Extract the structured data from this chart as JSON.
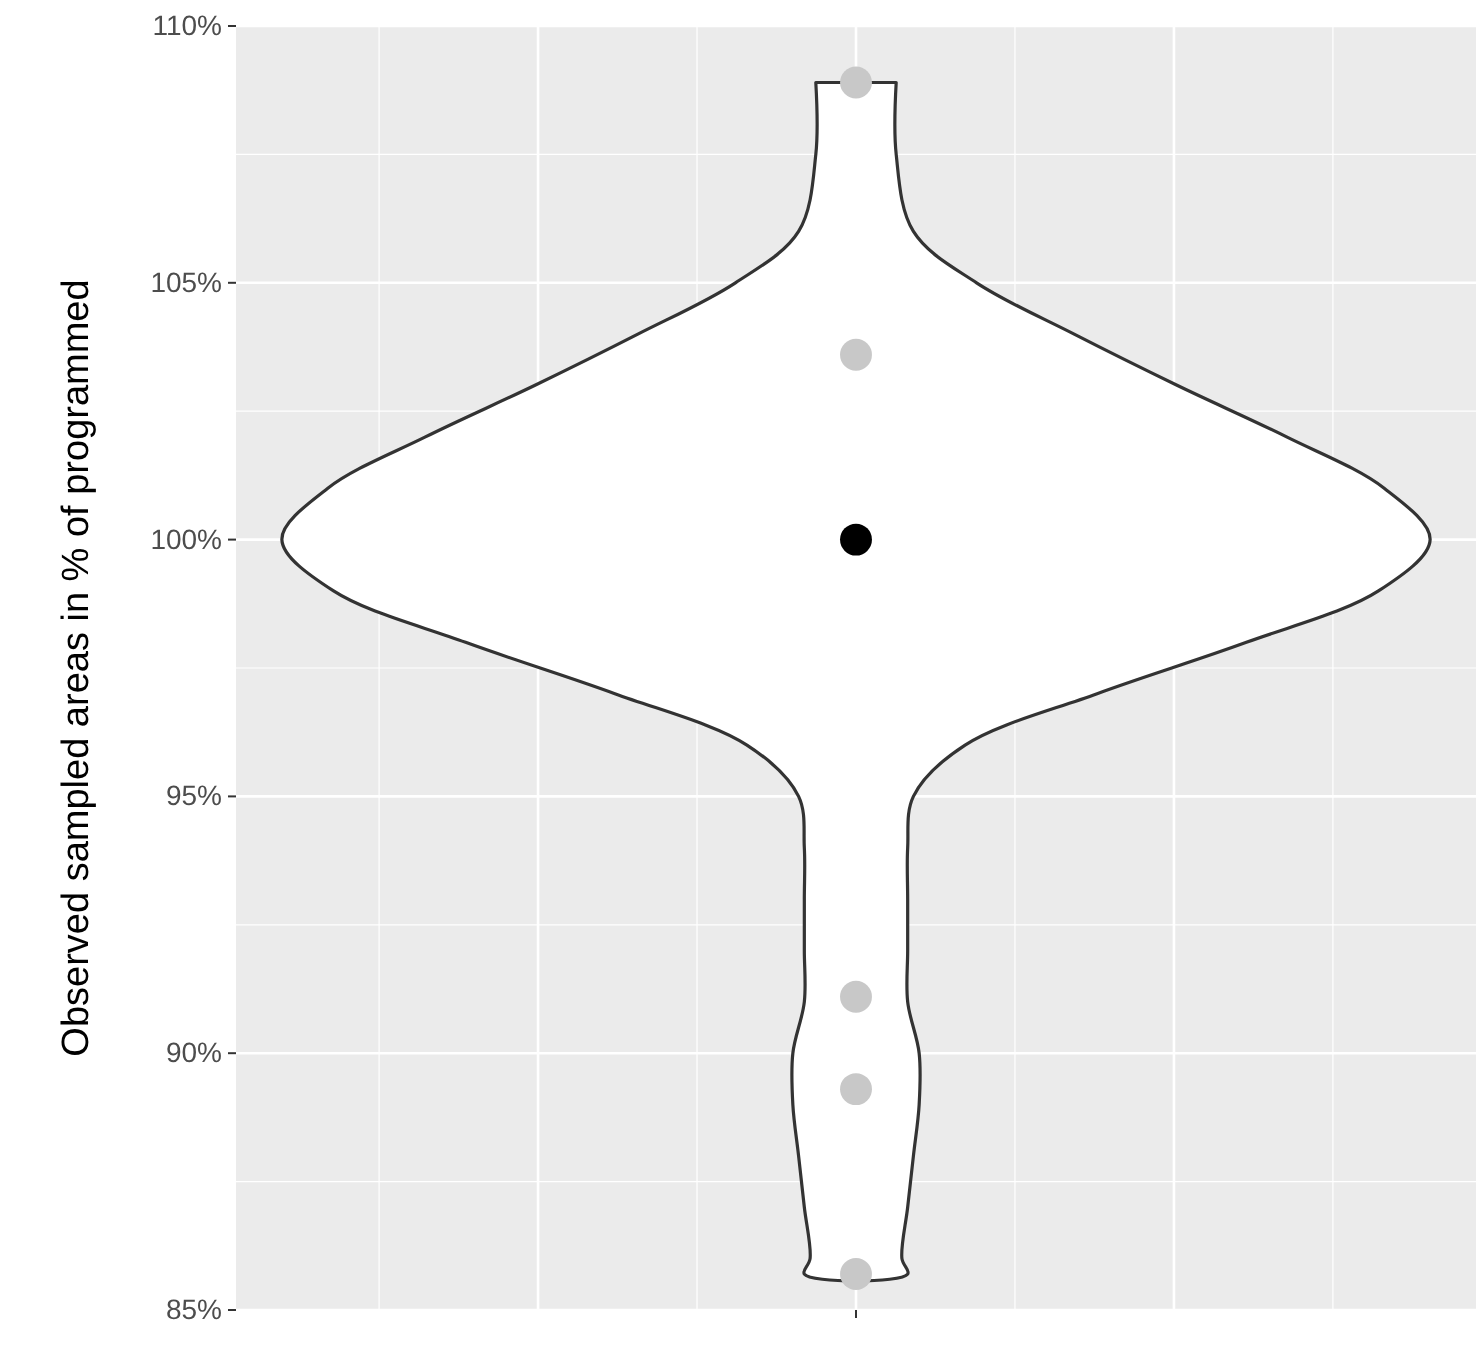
{
  "chart_data": {
    "type": "scatter",
    "ylabel": "Observed sampled areas in % of programmed",
    "categories": [
      null
    ],
    "ylim": [
      85,
      110
    ],
    "yticks": [
      {
        "value": 85,
        "label": "85%"
      },
      {
        "value": 90,
        "label": "90%"
      },
      {
        "value": 95,
        "label": "95%"
      },
      {
        "value": 100,
        "label": "100%"
      },
      {
        "value": 105,
        "label": "105%"
      },
      {
        "value": 110,
        "label": "110%"
      }
    ],
    "grid": true,
    "marker": "circle",
    "tick_labels": "y",
    "series": [
      {
        "x": [
          null,
          null,
          null,
          null,
          null,
          null
        ],
        "values": [
          108.9,
          103.6,
          100,
          91.1,
          89.3,
          85.7
        ],
        "colors": [
          "#c8c8c8",
          "#c8c8c8",
          "#000000",
          "#c8c8c8",
          "#c8c8c8",
          "#c8c8c8"
        ]
      }
    ]
  }
}
